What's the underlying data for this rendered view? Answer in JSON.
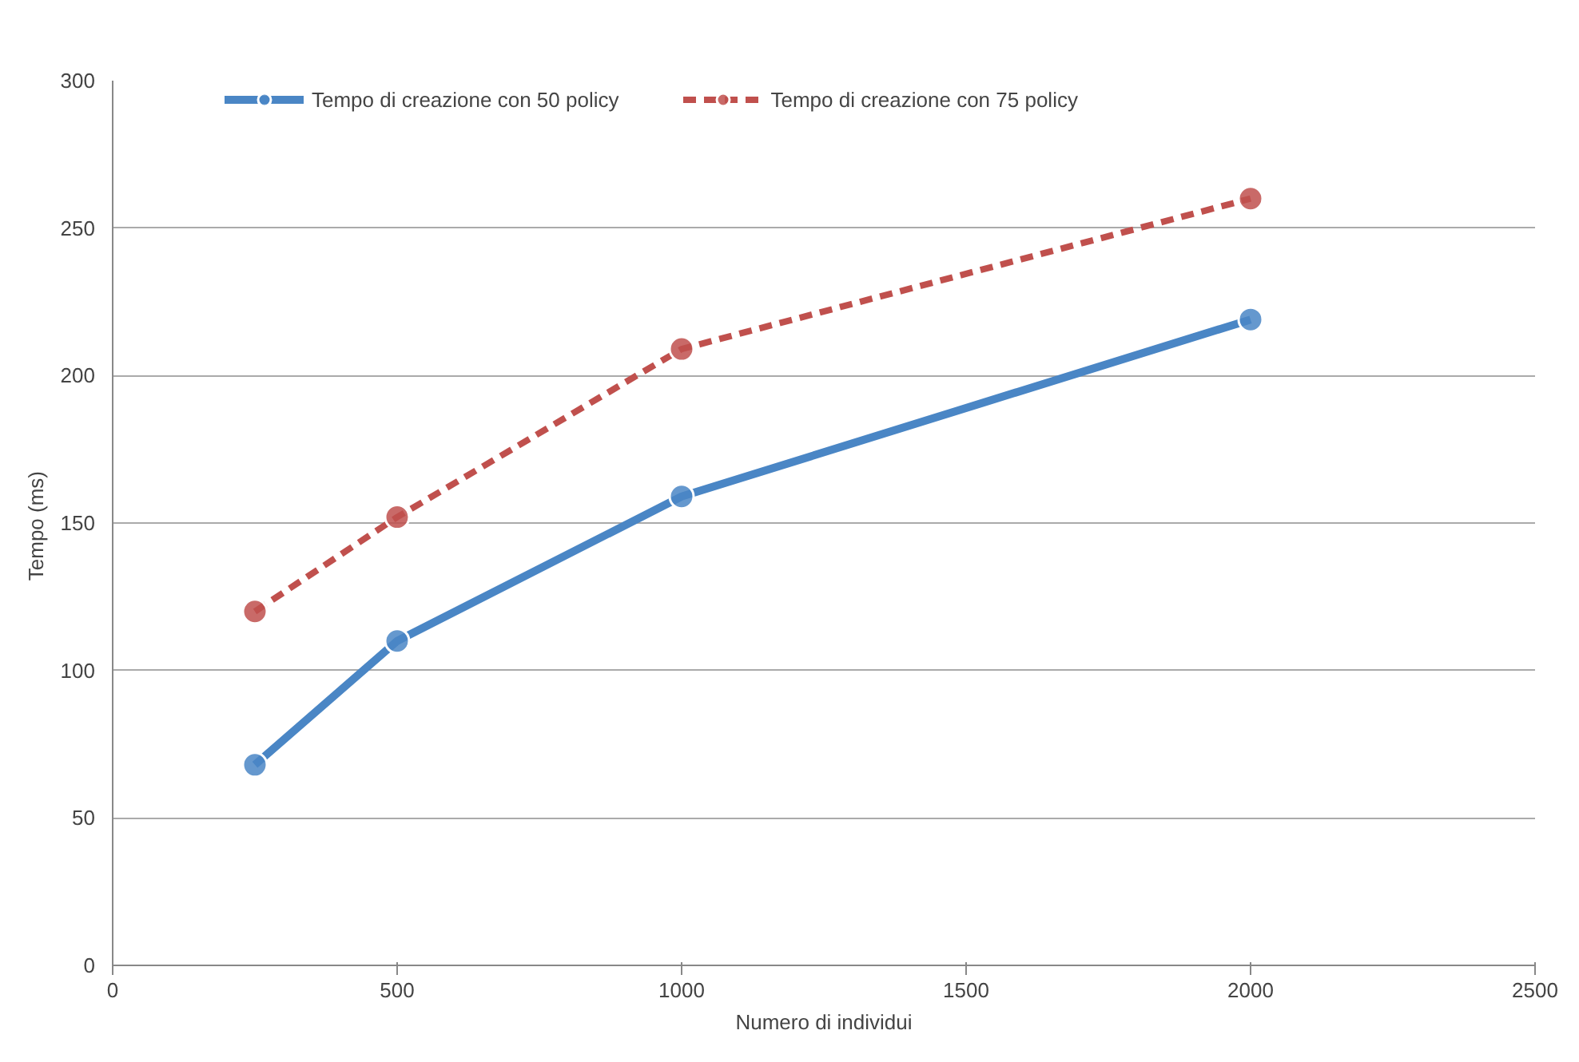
{
  "chart_data": {
    "type": "line",
    "xlabel": "Numero di individui",
    "ylabel": "Tempo  (ms)",
    "x": [
      250,
      500,
      1000,
      2000
    ],
    "series": [
      {
        "name": "Tempo di creazione con 50 policy",
        "color": "#4a86c5",
        "values": [
          68,
          110,
          159,
          219
        ],
        "line_style": "solid"
      },
      {
        "name": "Tempo di creazione con 75 policy",
        "color": "#c0504d",
        "values": [
          120,
          152,
          209,
          260
        ],
        "line_style": "dashed"
      }
    ],
    "xlim": [
      0,
      2500
    ],
    "xticks": [
      0,
      500,
      1000,
      1500,
      2000,
      2500
    ],
    "ylim": [
      0,
      300
    ],
    "yticks": [
      0,
      50,
      100,
      150,
      200,
      250,
      300
    ],
    "grid": "y",
    "legend": "top",
    "marker": "circle"
  }
}
